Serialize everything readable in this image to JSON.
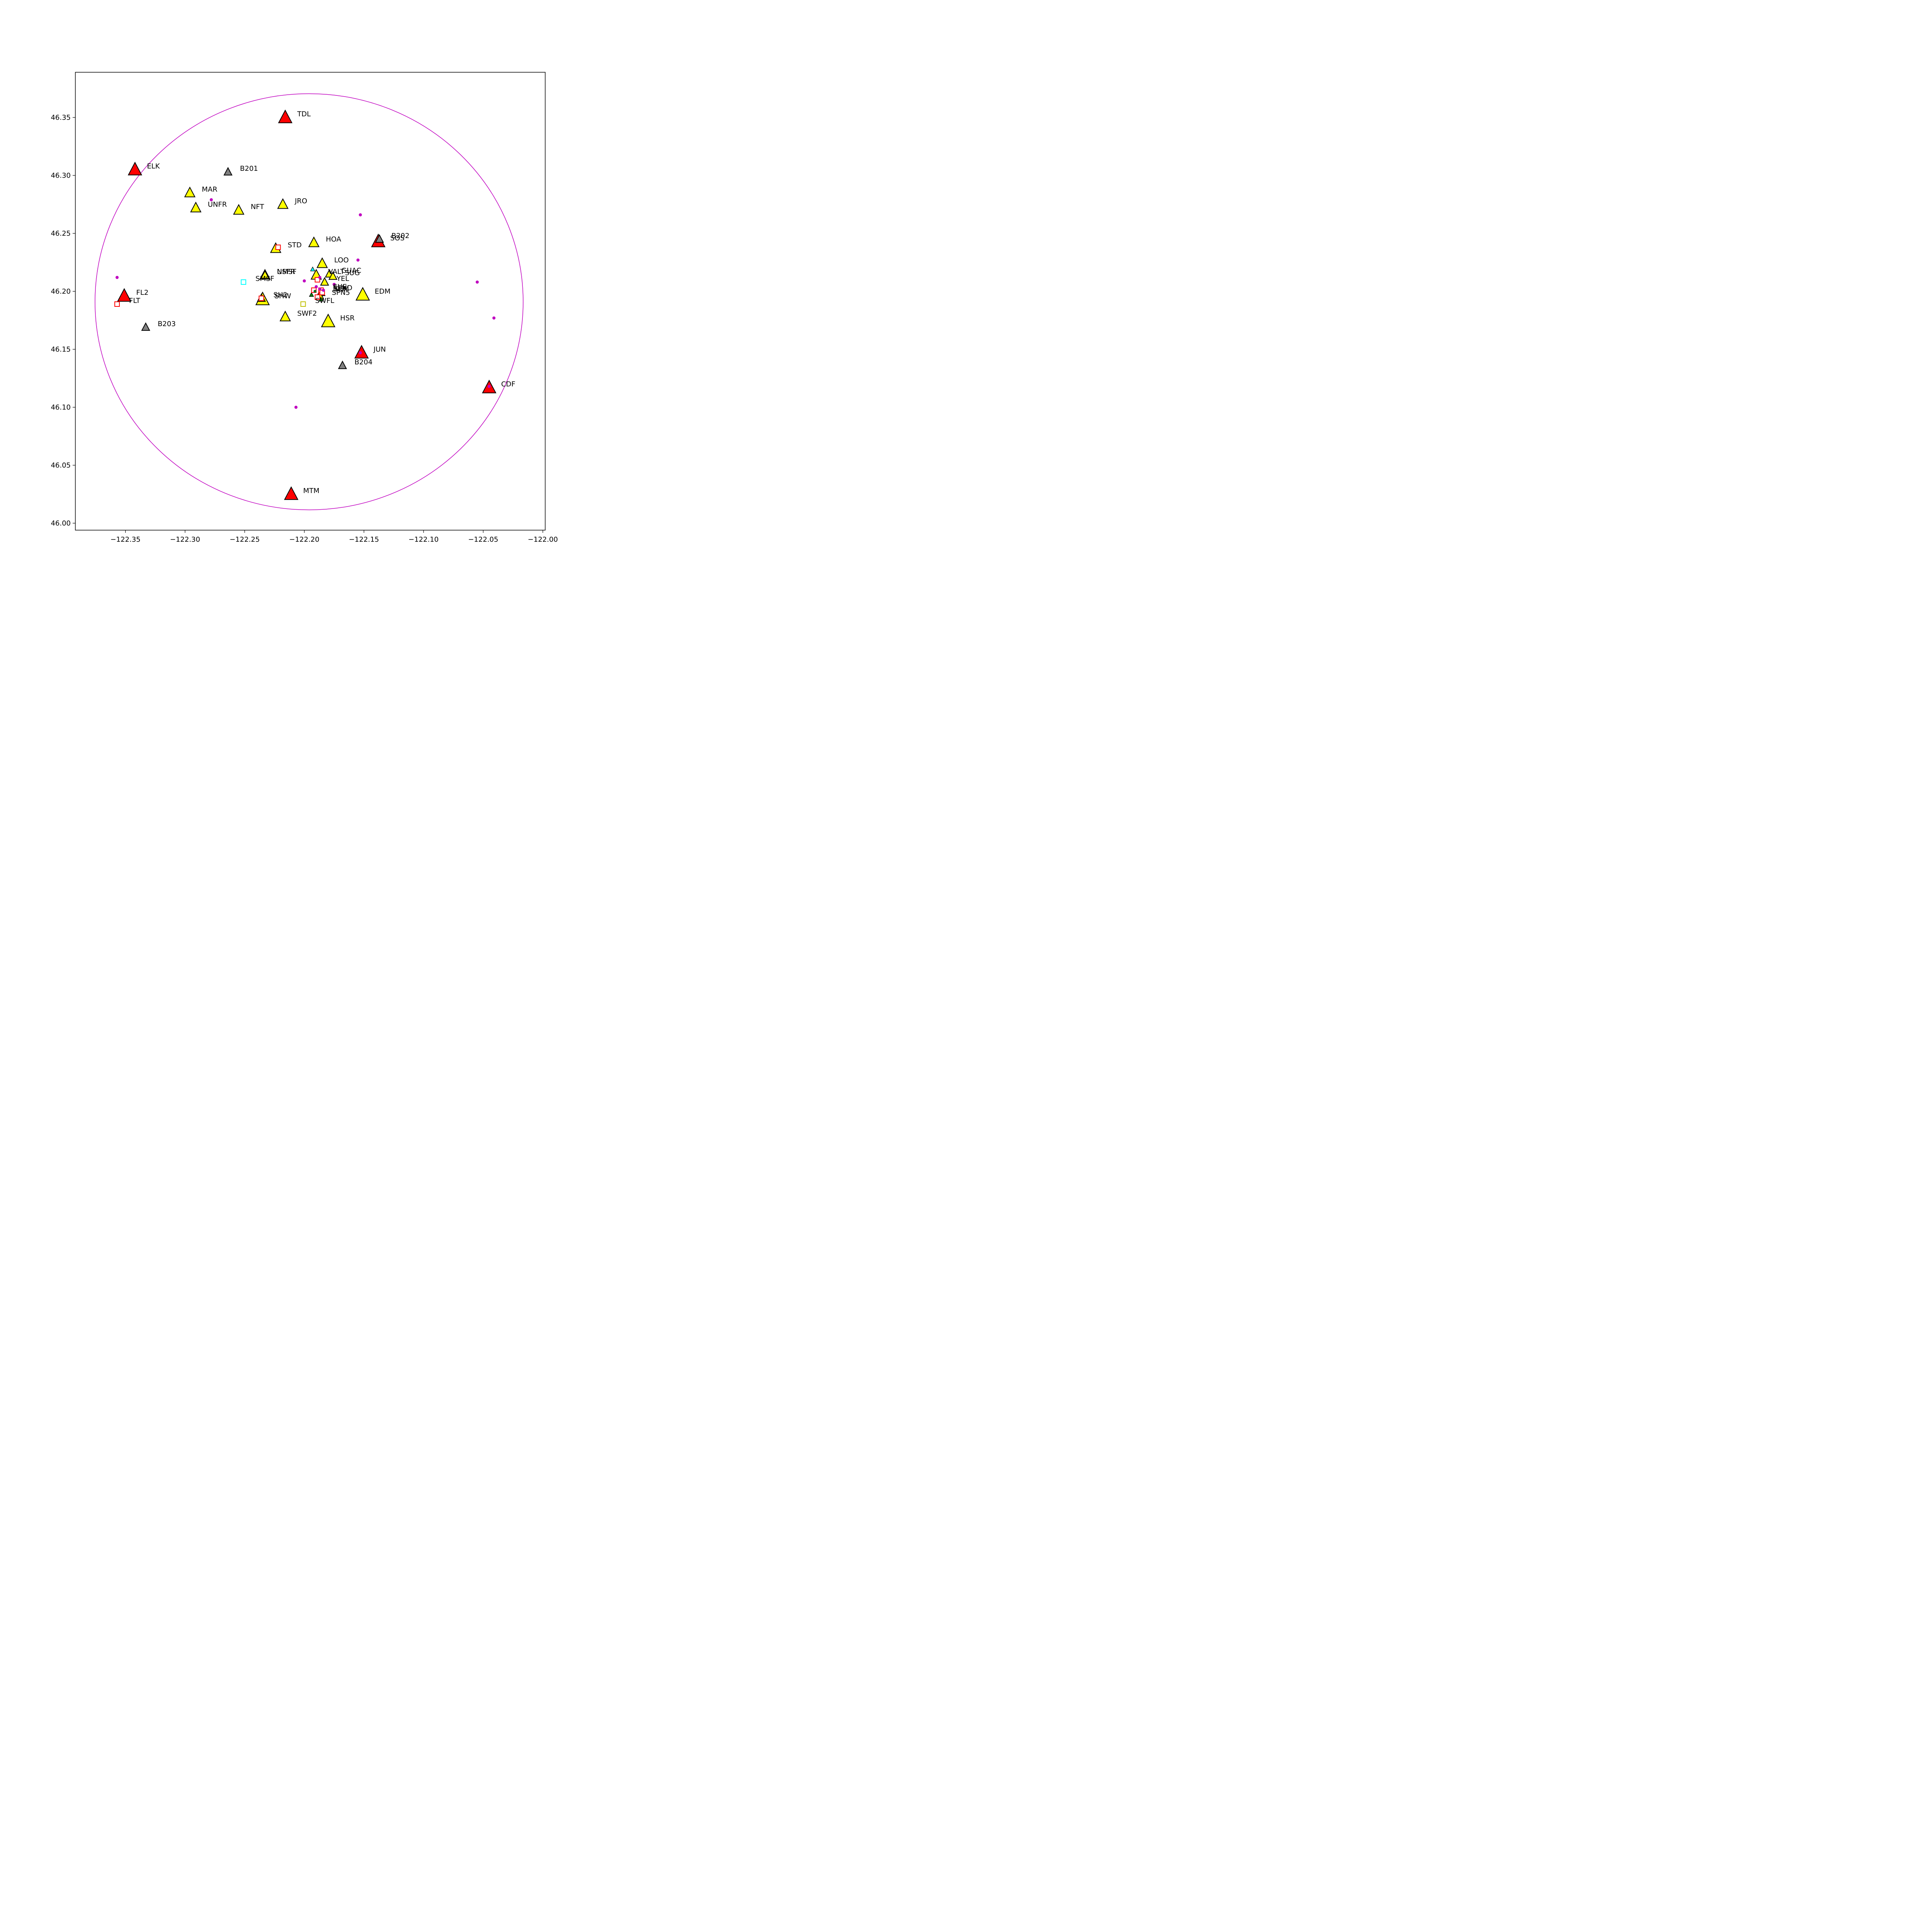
{
  "chart_data": {
    "type": "scatter",
    "title": "",
    "xlabel": "",
    "ylabel": "",
    "xlim": [
      -122.392,
      -121.998
    ],
    "ylim": [
      45.994,
      46.389
    ],
    "xticks": [
      {
        "value": -122.35,
        "label": "−122.35"
      },
      {
        "value": -122.3,
        "label": "−122.30"
      },
      {
        "value": -122.25,
        "label": "−122.25"
      },
      {
        "value": -122.2,
        "label": "−122.20"
      },
      {
        "value": -122.15,
        "label": "−122.15"
      },
      {
        "value": -122.1,
        "label": "−122.10"
      },
      {
        "value": -122.05,
        "label": "−122.05"
      },
      {
        "value": -122.0,
        "label": "−122.00"
      }
    ],
    "yticks": [
      {
        "value": 46.0,
        "label": "46.00"
      },
      {
        "value": 46.05,
        "label": "46.05"
      },
      {
        "value": 46.1,
        "label": "46.10"
      },
      {
        "value": 46.15,
        "label": "46.15"
      },
      {
        "value": 46.2,
        "label": "46.20"
      },
      {
        "value": 46.25,
        "label": "46.25"
      },
      {
        "value": 46.3,
        "label": "46.30"
      },
      {
        "value": 46.35,
        "label": "46.35"
      }
    ],
    "grid": false,
    "circle": {
      "center": [
        -122.196,
        46.191
      ],
      "rx": 0.1795,
      "ry": 0.1795,
      "color": "#c000c0"
    },
    "stations": [
      {
        "name": "TDL",
        "lon": -122.216,
        "lat": 46.35,
        "marker": "triangle",
        "fill": "#ff0000",
        "size": "large"
      },
      {
        "name": "ELK",
        "lon": -122.342,
        "lat": 46.305,
        "marker": "triangle",
        "fill": "#ff0000",
        "size": "large"
      },
      {
        "name": "B201",
        "lon": -122.264,
        "lat": 46.303,
        "marker": "triangle",
        "fill": "#808080",
        "size": "small"
      },
      {
        "name": "MAR",
        "lon": -122.296,
        "lat": 46.285,
        "marker": "triangle",
        "fill": "#ffff00",
        "size": "medium"
      },
      {
        "name": "UNFR",
        "lon": -122.291,
        "lat": 46.272,
        "marker": "triangle",
        "fill": "#ffff00",
        "size": "medium"
      },
      {
        "name": "NFT",
        "lon": -122.255,
        "lat": 46.27,
        "marker": "triangle",
        "fill": "#ffff00",
        "size": "medium"
      },
      {
        "name": "JRO",
        "lon": -122.218,
        "lat": 46.275,
        "marker": "triangle",
        "fill": "#ffff00",
        "size": "medium"
      },
      {
        "name": "SOS",
        "lon": -122.138,
        "lat": 46.243,
        "marker": "triangle",
        "fill": "#ff0000",
        "size": "large"
      },
      {
        "name": "B202",
        "lon": -122.137,
        "lat": 46.245,
        "marker": "triangle",
        "fill": "#808080",
        "size": "small"
      },
      {
        "name": "HOA",
        "lon": -122.192,
        "lat": 46.242,
        "marker": "triangle",
        "fill": "#ffff00",
        "size": "medium"
      },
      {
        "name": "STD",
        "lon": -122.224,
        "lat": 46.237,
        "marker": "triangle",
        "fill": "#ffff00",
        "size": "medium"
      },
      {
        "name": "LOO",
        "lon": -122.185,
        "lat": 46.224,
        "marker": "triangle",
        "fill": "#ffff00",
        "size": "medium"
      },
      {
        "name": "GUAC",
        "lon": -122.179,
        "lat": 46.215,
        "marker": "triangle",
        "fill": "#ffff00",
        "size": "small"
      },
      {
        "name": "SUG",
        "lon": -122.176,
        "lat": 46.213,
        "marker": "triangle",
        "fill": "#ffff00",
        "size": "small"
      },
      {
        "name": "VALT",
        "lon": -122.19,
        "lat": 46.214,
        "marker": "triangle",
        "fill": "#ffff00",
        "size": "medium"
      },
      {
        "name": "YEL",
        "lon": -122.183,
        "lat": 46.208,
        "marker": "triangle",
        "fill": "#ffff00",
        "size": "small"
      },
      {
        "name": "NMSF",
        "lon": -122.233,
        "lat": 46.214,
        "marker": "triangle",
        "fill": "#ffff00",
        "size": "medium"
      },
      {
        "name": "USFR",
        "lon": -122.233,
        "lat": 46.214,
        "marker": "triangle",
        "fill": "#ffff00",
        "size": "small"
      },
      {
        "name": "EDM",
        "lon": -122.151,
        "lat": 46.197,
        "marker": "triangle",
        "fill": "#ffff00",
        "size": "large"
      },
      {
        "name": "SEP",
        "lon": -122.186,
        "lat": 46.199,
        "marker": "triangle",
        "fill": "#ffff00",
        "size": "small"
      },
      {
        "name": "SPN5",
        "lon": -122.187,
        "lat": 46.196,
        "marker": "triangle",
        "fill": "#ffff00",
        "size": "small"
      },
      {
        "name": "SHW",
        "lon": -122.235,
        "lat": 46.193,
        "marker": "triangle",
        "fill": "#ffff00",
        "size": "large"
      },
      {
        "name": "SH2",
        "lon": -122.236,
        "lat": 46.194,
        "marker": "triangle",
        "fill": "#ffff00",
        "size": "small"
      },
      {
        "name": "FL2",
        "lon": -122.351,
        "lat": 46.196,
        "marker": "triangle",
        "fill": "#ff0000",
        "size": "large"
      },
      {
        "name": "SWF2",
        "lon": -122.216,
        "lat": 46.178,
        "marker": "triangle",
        "fill": "#ffff00",
        "size": "medium"
      },
      {
        "name": "HSR",
        "lon": -122.18,
        "lat": 46.174,
        "marker": "triangle",
        "fill": "#ffff00",
        "size": "large"
      },
      {
        "name": "B203",
        "lon": -122.333,
        "lat": 46.169,
        "marker": "triangle",
        "fill": "#808080",
        "size": "small"
      },
      {
        "name": "JUN",
        "lon": -122.152,
        "lat": 46.147,
        "marker": "triangle",
        "fill": "#ff0000",
        "size": "large"
      },
      {
        "name": "B204",
        "lon": -122.168,
        "lat": 46.136,
        "marker": "triangle",
        "fill": "#808080",
        "size": "small"
      },
      {
        "name": "CDF",
        "lon": -122.045,
        "lat": 46.117,
        "marker": "triangle",
        "fill": "#ff0000",
        "size": "large"
      },
      {
        "name": "MTM",
        "lon": -122.211,
        "lat": 46.025,
        "marker": "triangle",
        "fill": "#ff0000",
        "size": "large"
      },
      {
        "name": "FLT",
        "lon": -122.357,
        "lat": 46.189,
        "marker": "square",
        "edge": "#ff0000"
      },
      {
        "name": "SMSF",
        "lon": -122.251,
        "lat": 46.208,
        "marker": "square",
        "edge": "#00ffff"
      },
      {
        "name": "SWFL",
        "lon": -122.201,
        "lat": 46.189,
        "marker": "square",
        "edge": "#bfbf00"
      },
      {
        "name": "SEND",
        "lon": -122.186,
        "lat": 46.2,
        "marker": "square",
        "edge": "#ff0000"
      },
      {
        "name": "SUE",
        "lon": -122.186,
        "lat": 46.201,
        "marker": "square",
        "edge": "#ff0000"
      },
      {
        "name": "SEM",
        "lon": -122.185,
        "lat": 46.199,
        "marker": "square",
        "edge": "#ff0000"
      }
    ],
    "extra_squares": [
      {
        "lon": -122.222,
        "lat": 46.238,
        "edge": "#ff0000"
      },
      {
        "lon": -122.236,
        "lat": 46.194,
        "edge": "#ff0000"
      },
      {
        "lon": -122.189,
        "lat": 46.21,
        "edge": "#ff0000"
      },
      {
        "lon": -122.189,
        "lat": 46.195,
        "edge": "#ff0000"
      },
      {
        "lon": -122.192,
        "lat": 46.201,
        "edge": "#ff0000"
      }
    ],
    "extra_triangles": [
      {
        "lon": -122.193,
        "lat": 46.219,
        "fill": "#00ffff"
      },
      {
        "lon": -122.194,
        "lat": 46.197,
        "fill": "#008000"
      },
      {
        "lon": -122.188,
        "lat": 46.195,
        "fill": "#008000"
      },
      {
        "lon": -122.186,
        "lat": 46.193,
        "fill": "#008000"
      }
    ],
    "events": [
      {
        "lon": -122.278,
        "lat": 46.279
      },
      {
        "lon": -122.153,
        "lat": 46.266
      },
      {
        "lon": -122.155,
        "lat": 46.227
      },
      {
        "lon": -122.357,
        "lat": 46.212
      },
      {
        "lon": -122.2,
        "lat": 46.209
      },
      {
        "lon": -122.187,
        "lat": 46.212
      },
      {
        "lon": -122.175,
        "lat": 46.206
      },
      {
        "lon": -122.055,
        "lat": 46.208
      },
      {
        "lon": -122.041,
        "lat": 46.177
      },
      {
        "lon": -122.207,
        "lat": 46.1
      },
      {
        "lon": -122.153,
        "lat": 46.147
      },
      {
        "lon": -122.045,
        "lat": 46.118
      },
      {
        "lon": -122.19,
        "lat": 46.204
      },
      {
        "lon": -122.187,
        "lat": 46.202
      },
      {
        "lon": -122.184,
        "lat": 46.201
      },
      {
        "lon": -122.191,
        "lat": 46.2
      }
    ],
    "green_dots": [
      {
        "lon": -122.191,
        "lat": 46.2
      }
    ]
  }
}
